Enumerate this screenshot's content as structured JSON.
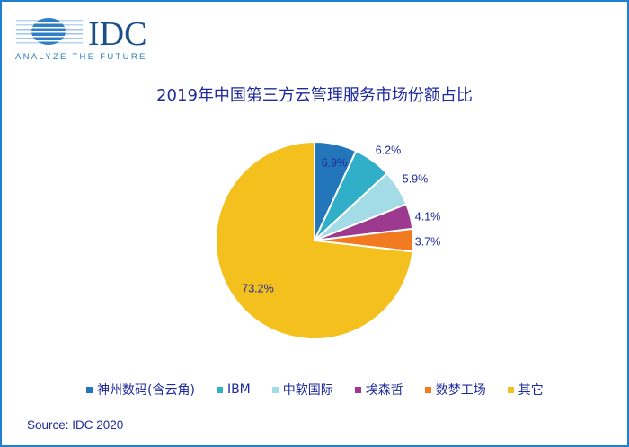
{
  "logo": {
    "name": "IDC",
    "tagline": "ANALYZE THE FUTURE"
  },
  "chart_data": {
    "type": "pie",
    "title": "2019年中国第三方云管理服务市场份额占比",
    "categories": [
      "神州数码(含云角)",
      "IBM",
      "中软国际",
      "埃森哲",
      "数梦工场",
      "其它"
    ],
    "values": [
      6.9,
      6.2,
      5.9,
      4.1,
      3.7,
      73.2
    ],
    "labels": [
      "6.9%",
      "6.2%",
      "5.9%",
      "4.1%",
      "3.7%",
      "73.2%"
    ],
    "colors": [
      "#2376b9",
      "#31afc9",
      "#a3dbe6",
      "#9b3a8f",
      "#f27b22",
      "#f4c01e"
    ],
    "start": "12 o'clock",
    "direction": "clockwise",
    "legend_position": "bottom"
  },
  "source": "Source: IDC 2020"
}
